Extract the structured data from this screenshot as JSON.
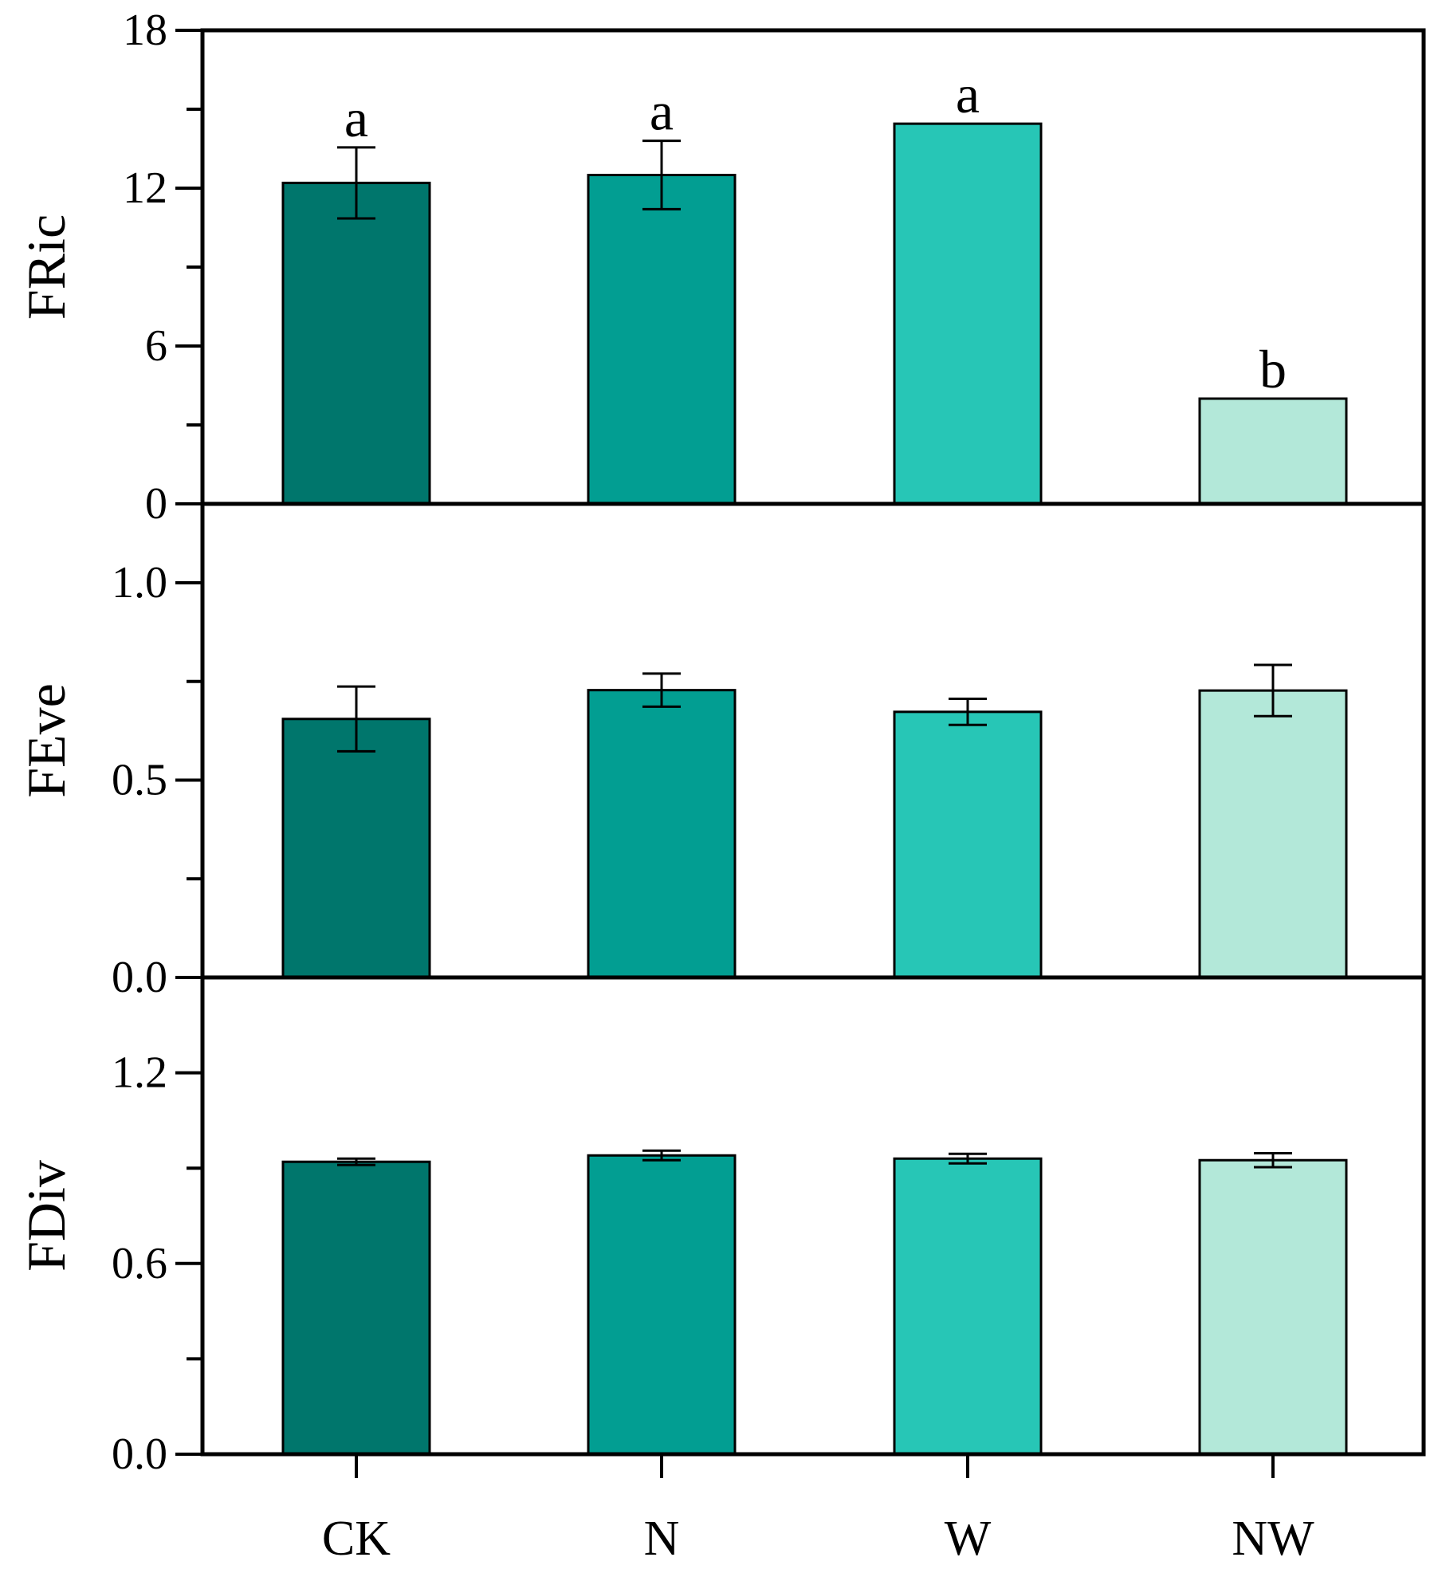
{
  "chart_data": {
    "type": "bar",
    "layout": "stacked-panels-shared-x",
    "categories": [
      "CK",
      "N",
      "W",
      "NW"
    ],
    "colors": [
      "#00766c",
      "#029e92",
      "#27c6b6",
      "#b3e8d9"
    ],
    "panels": [
      {
        "ylabel": "FRic",
        "ylim": [
          0,
          18
        ],
        "yticks": [
          0,
          6,
          12,
          18
        ],
        "ytick_labels": [
          "0",
          "6",
          "12",
          "18"
        ],
        "minor_step": 3,
        "values": [
          12.2,
          12.5,
          14.45,
          4.0
        ],
        "errors": [
          1.35,
          1.3,
          0,
          0
        ],
        "significance": [
          "a",
          "a",
          "a",
          "b"
        ]
      },
      {
        "ylabel": "FEve",
        "ylim": [
          0,
          1.2
        ],
        "yticks": [
          0.0,
          0.5,
          1.0
        ],
        "ytick_labels": [
          "0.0",
          "0.5",
          "1.0"
        ],
        "minor_step": 0.25,
        "values": [
          0.655,
          0.728,
          0.673,
          0.727
        ],
        "errors": [
          0.082,
          0.042,
          0.033,
          0.065
        ],
        "significance": [
          "",
          "",
          "",
          ""
        ]
      },
      {
        "ylabel": "FDiv",
        "ylim": [
          0,
          1.5
        ],
        "yticks": [
          0.0,
          0.6,
          1.2
        ],
        "ytick_labels": [
          "0.0",
          "0.6",
          "1.2"
        ],
        "minor_step": 0.3,
        "values": [
          0.92,
          0.94,
          0.93,
          0.925
        ],
        "errors": [
          0.01,
          0.015,
          0.015,
          0.022
        ],
        "significance": [
          "",
          "",
          "",
          ""
        ]
      }
    ],
    "grid": false,
    "legend": "none"
  }
}
